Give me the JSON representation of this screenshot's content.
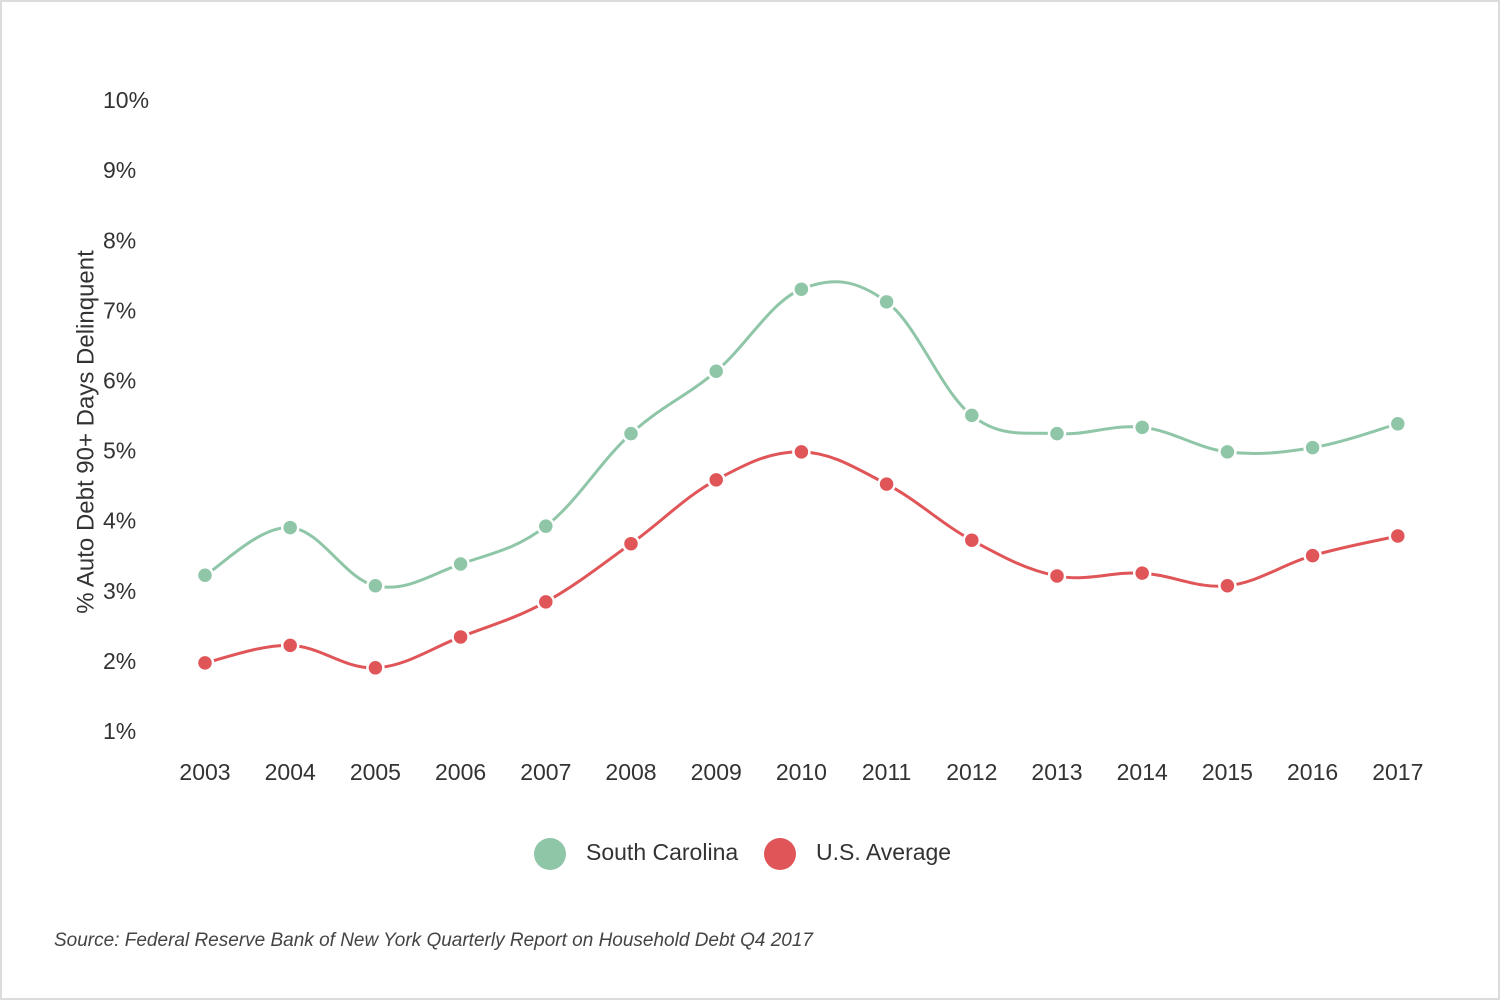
{
  "chart_data": {
    "type": "line",
    "ylabel": "% Auto Debt 90+ Days Delinquent",
    "xlabel": "",
    "categories": [
      "2003",
      "2004",
      "2005",
      "2006",
      "2007",
      "2008",
      "2009",
      "2010",
      "2011",
      "2012",
      "2013",
      "2014",
      "2015",
      "2016",
      "2017"
    ],
    "y_ticks": [
      "10%",
      "9%",
      "8%",
      "7%",
      "6%",
      "5%",
      "4%",
      "3%",
      "2%",
      "1%"
    ],
    "ylim": [
      1,
      10
    ],
    "grid": false,
    "legend_position": "bottom-center",
    "series": [
      {
        "name": "South Carolina",
        "color": "#8fc6a8",
        "values": [
          3.25,
          3.93,
          3.1,
          3.41,
          3.95,
          5.27,
          6.16,
          7.33,
          7.15,
          5.53,
          5.27,
          5.36,
          5.01,
          5.07,
          5.41
        ]
      },
      {
        "name": "U.S. Average",
        "color": "#e05558",
        "values": [
          2.0,
          2.25,
          1.93,
          2.37,
          2.87,
          3.7,
          4.61,
          5.01,
          4.55,
          3.75,
          3.24,
          3.28,
          3.1,
          3.53,
          3.81
        ]
      }
    ]
  },
  "source_text": "Source: Federal Reserve Bank of New York Quarterly Report on Household Debt Q4 2017"
}
